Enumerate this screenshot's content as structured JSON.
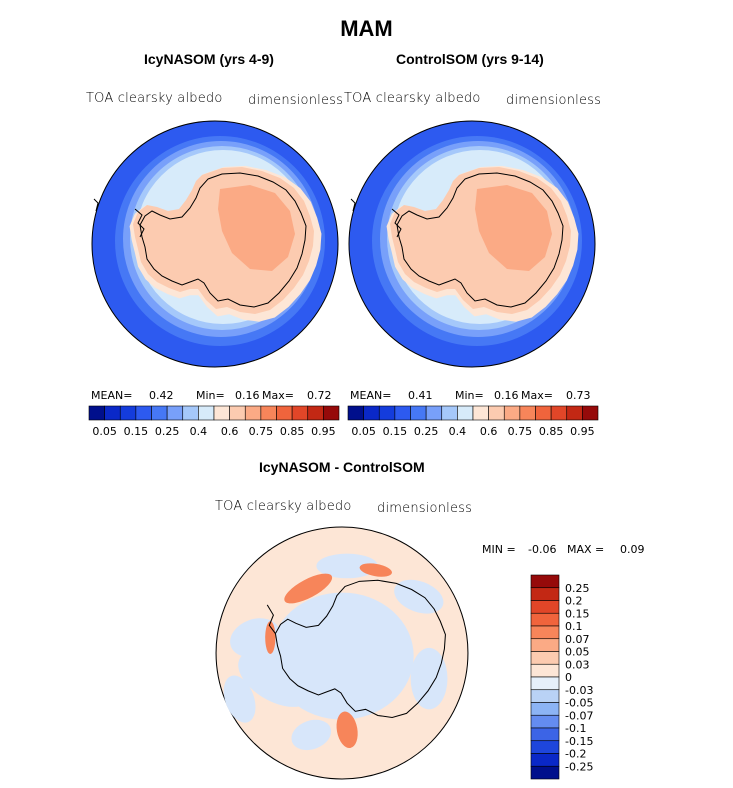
{
  "figure": {
    "title": "MAM"
  },
  "panels": [
    {
      "title": "IcyNASOM (yrs 4-9)",
      "variable": "TOA clearsky albedo",
      "units": "dimensionless",
      "stats": {
        "mean_label": "MEAN=",
        "mean": "0.42",
        "min_label": "Min=",
        "min": "0.16",
        "max_label": "Max=",
        "max": "0.72"
      }
    },
    {
      "title": "ControlSOM (yrs 9-14)",
      "variable": "TOA clearsky albedo",
      "units": "dimensionless",
      "stats": {
        "mean_label": "MEAN=",
        "mean": "0.41",
        "min_label": "Min=",
        "min": "0.16",
        "max_label": "Max=",
        "max": "0.73"
      }
    },
    {
      "title": "IcyNASOM - ControlSOM",
      "variable": "TOA clearsky albedo",
      "units": "dimensionless",
      "stats": {
        "min_label": "MIN =",
        "min": "-0.06",
        "max_label": "MAX =",
        "max": "0.09"
      }
    }
  ],
  "colorbar_albedo": {
    "colors": [
      "#000f8c",
      "#0a28c8",
      "#143cdc",
      "#2d5af0",
      "#4678f5",
      "#78a0fa",
      "#a5c8fa",
      "#d7ebfa",
      "#fde6d6",
      "#fccbb0",
      "#fbaa85",
      "#f7855a",
      "#f0643c",
      "#e14628",
      "#c32814",
      "#960a0a"
    ],
    "tick_labels": [
      "0.05",
      "0.15",
      "0.25",
      "0.4",
      "0.6",
      "0.75",
      "0.85",
      "0.95"
    ]
  },
  "colorbar_diff": {
    "colors": [
      "#960a0a",
      "#c32814",
      "#e14628",
      "#f0643c",
      "#f7855a",
      "#fbaa85",
      "#fccbb0",
      "#fde6d6",
      "#e6f0fa",
      "#b9d2f5",
      "#8cb4f5",
      "#648cf0",
      "#3c64e6",
      "#1e46dc",
      "#0a28c8",
      "#000f8c"
    ],
    "labels": [
      "0.25",
      "0.2",
      "0.15",
      "0.1",
      "0.07",
      "0.05",
      "0.03",
      "0",
      "-0.03",
      "-0.05",
      "-0.07",
      "-0.1",
      "-0.15",
      "-0.2",
      "-0.25"
    ]
  },
  "map_colors": {
    "ocean_low": "#2d5af0",
    "ring_1": "#4678f5",
    "ring_2": "#78a0fa",
    "ring_3": "#a5c8fa",
    "ring_4": "#d7ebfa",
    "ice_edge": "#fde6d6",
    "ice": "#fccbb0",
    "ice_high": "#fbaa85",
    "diff_bg": "#fde6d6",
    "diff_neg": "#d7e6fa",
    "diff_pos": "#f7855a"
  }
}
